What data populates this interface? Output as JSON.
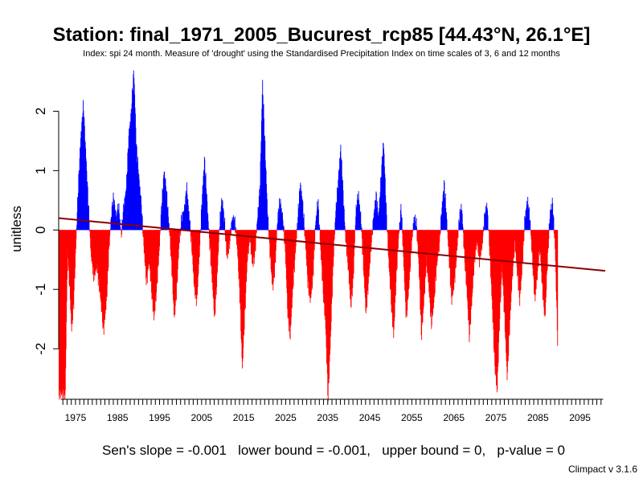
{
  "title": "Station: final_1971_2005_Bucurest_rcp85 [44.43°N, 26.1°E]",
  "subtitle": "Index: spi 24 month. Measure of 'drought' using the Standardised Precipitation Index on time scales of 3, 6 and 12 months",
  "footer": "Sen's slope = -0.001   lower bound = -0.001,   upper bound = 0,   p-value = 0",
  "credit": "Climpact v 3.1.6",
  "colors": {
    "positive": "#0000ff",
    "negative": "#ff0000",
    "trend": "#8b0000",
    "axis": "#000000"
  },
  "chart_data": {
    "type": "bar",
    "ylabel": "unitless",
    "xlabel": "",
    "xlim": [
      1970.9,
      2101.2
    ],
    "ylim": [
      -2.8,
      2.8
    ],
    "xticks": [
      1975,
      1985,
      1995,
      2005,
      2015,
      2025,
      2035,
      2045,
      2055,
      2065,
      2075,
      2085,
      2095
    ],
    "yticks": [
      -2,
      -1,
      0,
      1,
      2
    ],
    "grid": false,
    "legend": "none",
    "trend_line": {
      "label": "Sen's slope",
      "x": [
        1971,
        2100
      ],
      "y": [
        0.2,
        -0.68
      ]
    },
    "anchors": [
      [
        1971.0,
        -2.75
      ],
      [
        1972.5,
        -2.75
      ],
      [
        1973.0,
        -0.4
      ],
      [
        1973.5,
        -0.9
      ],
      [
        1974.0,
        -1.7
      ],
      [
        1974.5,
        -1.2
      ],
      [
        1975.0,
        -0.3
      ],
      [
        1975.5,
        0.6
      ],
      [
        1976.2,
        1.6
      ],
      [
        1976.8,
        2.1
      ],
      [
        1977.3,
        1.4
      ],
      [
        1978.0,
        0.4
      ],
      [
        1978.6,
        -0.4
      ],
      [
        1979.3,
        -0.8
      ],
      [
        1980.0,
        -0.6
      ],
      [
        1980.8,
        -1.1
      ],
      [
        1981.6,
        -1.7
      ],
      [
        1982.3,
        -1.2
      ],
      [
        1982.9,
        -0.3
      ],
      [
        1983.5,
        0.3
      ],
      [
        1984.0,
        0.55
      ],
      [
        1984.6,
        0.2
      ],
      [
        1985.2,
        0.4
      ],
      [
        1985.8,
        -0.1
      ],
      [
        1986.4,
        0.4
      ],
      [
        1987.0,
        0.7
      ],
      [
        1987.6,
        1.6
      ],
      [
        1988.2,
        2.0
      ],
      [
        1988.8,
        2.7
      ],
      [
        1989.4,
        1.4
      ],
      [
        1990.0,
        0.9
      ],
      [
        1990.6,
        0.4
      ],
      [
        1991.2,
        -0.3
      ],
      [
        1991.8,
        -0.9
      ],
      [
        1992.4,
        -0.5
      ],
      [
        1993.0,
        -1.0
      ],
      [
        1993.6,
        -1.5
      ],
      [
        1994.2,
        -1.0
      ],
      [
        1994.8,
        -0.4
      ],
      [
        1995.4,
        0.4
      ],
      [
        1996.0,
        1.0
      ],
      [
        1996.6,
        0.6
      ],
      [
        1997.2,
        0.05
      ],
      [
        1997.8,
        -0.6
      ],
      [
        1998.4,
        -1.5
      ],
      [
        1999.0,
        -1.0
      ],
      [
        1999.6,
        -0.2
      ],
      [
        2000.2,
        0.2
      ],
      [
        2000.8,
        0.35
      ],
      [
        2001.4,
        0.7
      ],
      [
        2002.0,
        0.2
      ],
      [
        2002.6,
        -0.3
      ],
      [
        2003.2,
        -1.0
      ],
      [
        2003.8,
        -1.2
      ],
      [
        2004.4,
        -0.4
      ],
      [
        2005.0,
        0.5
      ],
      [
        2005.6,
        1.2
      ],
      [
        2006.2,
        0.5
      ],
      [
        2006.8,
        -0.2
      ],
      [
        2007.4,
        -0.8
      ],
      [
        2008.0,
        -1.5
      ],
      [
        2008.6,
        -0.8
      ],
      [
        2009.2,
        0.1
      ],
      [
        2009.8,
        0.55
      ],
      [
        2010.4,
        0.1
      ],
      [
        2011.0,
        -0.5
      ],
      [
        2011.6,
        -0.2
      ],
      [
        2012.2,
        0.2
      ],
      [
        2012.8,
        0.15
      ],
      [
        2013.4,
        -0.3
      ],
      [
        2014.0,
        -1.1
      ],
      [
        2014.6,
        -2.35
      ],
      [
        2015.2,
        -1.4
      ],
      [
        2015.8,
        -0.5
      ],
      [
        2016.4,
        -0.1
      ],
      [
        2017.0,
        -0.6
      ],
      [
        2017.6,
        -0.4
      ],
      [
        2018.2,
        0.2
      ],
      [
        2018.8,
        0.7
      ],
      [
        2019.4,
        2.5
      ],
      [
        2020.0,
        1.4
      ],
      [
        2020.6,
        0.3
      ],
      [
        2021.2,
        -0.4
      ],
      [
        2021.8,
        -1.0
      ],
      [
        2022.4,
        -0.6
      ],
      [
        2023.0,
        0.2
      ],
      [
        2023.6,
        0.5
      ],
      [
        2024.2,
        0.2
      ],
      [
        2024.8,
        -0.3
      ],
      [
        2025.4,
        -1.4
      ],
      [
        2026.0,
        -1.8
      ],
      [
        2026.6,
        -1.0
      ],
      [
        2027.2,
        -0.4
      ],
      [
        2027.8,
        0.2
      ],
      [
        2028.4,
        0.8
      ],
      [
        2029.0,
        0.4
      ],
      [
        2029.6,
        -0.2
      ],
      [
        2030.2,
        -0.9
      ],
      [
        2030.8,
        -1.2
      ],
      [
        2031.4,
        -0.8
      ],
      [
        2032.0,
        0.1
      ],
      [
        2032.6,
        0.5
      ],
      [
        2033.2,
        -0.3
      ],
      [
        2033.8,
        -1.0
      ],
      [
        2034.4,
        -1.6
      ],
      [
        2035.0,
        -2.85
      ],
      [
        2035.6,
        -1.8
      ],
      [
        2036.2,
        -0.6
      ],
      [
        2036.8,
        0.3
      ],
      [
        2037.4,
        0.8
      ],
      [
        2038.0,
        1.4
      ],
      [
        2038.6,
        0.6
      ],
      [
        2039.2,
        -0.2
      ],
      [
        2039.8,
        -0.6
      ],
      [
        2040.4,
        -1.3
      ],
      [
        2041.0,
        -0.8
      ],
      [
        2041.6,
        0.3
      ],
      [
        2042.2,
        0.6
      ],
      [
        2042.8,
        0.2
      ],
      [
        2043.4,
        -0.6
      ],
      [
        2044.0,
        -1.4
      ],
      [
        2044.6,
        -0.9
      ],
      [
        2045.2,
        -0.3
      ],
      [
        2045.8,
        0.2
      ],
      [
        2046.4,
        0.6
      ],
      [
        2047.0,
        0.2
      ],
      [
        2047.6,
        0.9
      ],
      [
        2048.2,
        1.5
      ],
      [
        2048.8,
        0.4
      ],
      [
        2049.4,
        -0.5
      ],
      [
        2050.0,
        -1.2
      ],
      [
        2050.6,
        -1.8
      ],
      [
        2051.2,
        -0.8
      ],
      [
        2051.8,
        -0.1
      ],
      [
        2052.4,
        0.4
      ],
      [
        2053.0,
        -0.6
      ],
      [
        2053.6,
        -1.5
      ],
      [
        2054.2,
        -1.0
      ],
      [
        2054.8,
        -0.3
      ],
      [
        2055.4,
        0.2
      ],
      [
        2056.0,
        0.1
      ],
      [
        2056.6,
        -0.6
      ],
      [
        2057.2,
        -1.8
      ],
      [
        2057.8,
        -1.2
      ],
      [
        2058.4,
        -0.5
      ],
      [
        2059.0,
        -1.0
      ],
      [
        2059.6,
        -1.6
      ],
      [
        2060.2,
        -1.2
      ],
      [
        2060.8,
        -0.6
      ],
      [
        2061.4,
        -0.3
      ],
      [
        2062.0,
        0.3
      ],
      [
        2062.6,
        0.8
      ],
      [
        2063.2,
        0.2
      ],
      [
        2063.8,
        -0.5
      ],
      [
        2064.4,
        -1.2
      ],
      [
        2065.0,
        -0.9
      ],
      [
        2065.6,
        -0.4
      ],
      [
        2066.2,
        0.2
      ],
      [
        2066.8,
        0.4
      ],
      [
        2067.4,
        -0.4
      ],
      [
        2068.0,
        -1.0
      ],
      [
        2068.6,
        -1.8
      ],
      [
        2069.2,
        -1.2
      ],
      [
        2069.8,
        -0.5
      ],
      [
        2070.4,
        -0.2
      ],
      [
        2071.0,
        -0.5
      ],
      [
        2071.6,
        -0.3
      ],
      [
        2072.2,
        0.2
      ],
      [
        2072.8,
        0.45
      ],
      [
        2073.4,
        -0.3
      ],
      [
        2074.0,
        -1.2
      ],
      [
        2074.6,
        -2.2
      ],
      [
        2075.2,
        -2.75
      ],
      [
        2075.8,
        -1.5
      ],
      [
        2076.4,
        -0.6
      ],
      [
        2077.0,
        -1.5
      ],
      [
        2077.6,
        -2.5
      ],
      [
        2078.2,
        -1.6
      ],
      [
        2078.8,
        -0.8
      ],
      [
        2079.4,
        -0.2
      ],
      [
        2080.0,
        -0.7
      ],
      [
        2080.6,
        -1.2
      ],
      [
        2081.2,
        -0.6
      ],
      [
        2081.8,
        0.2
      ],
      [
        2082.4,
        0.5
      ],
      [
        2083.0,
        0.2
      ],
      [
        2083.6,
        -0.5
      ],
      [
        2084.2,
        -1.2
      ],
      [
        2084.8,
        -0.7
      ],
      [
        2085.4,
        -0.3
      ],
      [
        2086.0,
        -1.0
      ],
      [
        2086.6,
        -1.5
      ],
      [
        2087.2,
        -0.5
      ],
      [
        2087.8,
        0.3
      ],
      [
        2088.4,
        0.45
      ],
      [
        2089.0,
        -0.3
      ],
      [
        2089.6,
        -1.9
      ]
    ]
  }
}
